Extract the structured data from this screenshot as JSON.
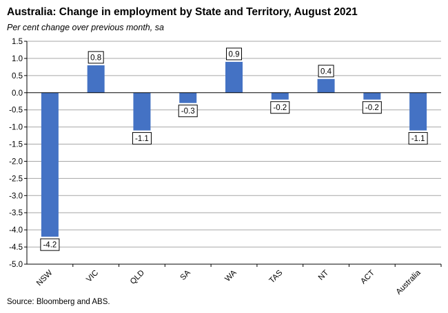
{
  "chart_data": {
    "type": "bar",
    "title": "Australia: Change in employment by State and Territory, August 2021",
    "subtitle": "Per cent change over previous month, sa",
    "source": "Source: Bloomberg and ABS.",
    "categories": [
      "NSW",
      "VIC",
      "QLD",
      "SA",
      "WA",
      "TAS",
      "NT",
      "ACT",
      "Australia"
    ],
    "values": [
      -4.2,
      0.8,
      -1.1,
      -0.3,
      0.9,
      -0.2,
      0.4,
      -0.2,
      -1.1
    ],
    "value_labels": [
      "-4.2",
      "0.8",
      "-1.1",
      "-0.3",
      "0.9",
      "-0.2",
      "0.4",
      "-0.2",
      "-1.1"
    ],
    "ylim": [
      -5.0,
      1.5
    ],
    "yticks": [
      "1.5",
      "1.0",
      "0.5",
      "0.0",
      "-0.5",
      "-1.0",
      "-1.5",
      "-2.0",
      "-2.5",
      "-3.0",
      "-3.5",
      "-4.0",
      "-4.5",
      "-5.0"
    ],
    "xlabel": "",
    "ylabel": "",
    "grid": true,
    "bar_color": "#4472C4",
    "grid_color": "#A6A6A6"
  }
}
